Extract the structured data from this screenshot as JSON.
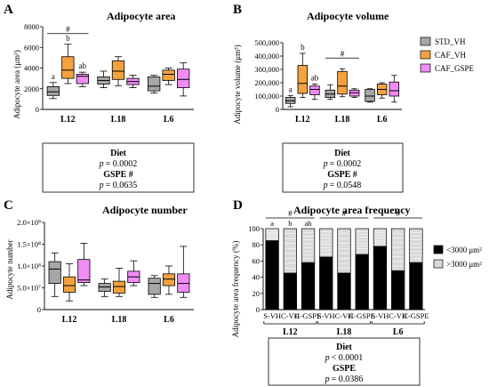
{
  "colors": {
    "STD_VH": "#a6a6a6",
    "CAF_VH": "#f4a23f",
    "CAF_GSPE": "#f08cf4",
    "bar_below": "#000000",
    "bar_above": "#d9d9d9"
  },
  "legend": [
    "STD_VH",
    "CAF_VH",
    "CAF_GSPE"
  ],
  "chart_data": [
    {
      "type": "boxplot",
      "panel": "A",
      "title": "Adipocyte area",
      "ylabel": "Adipocyte area (μm²)",
      "ylim": [
        0,
        8000
      ],
      "yticks": [
        "0",
        "2000",
        "4000",
        "6000",
        "8000"
      ],
      "categories": [
        "L12",
        "L18",
        "L6"
      ],
      "series": [
        {
          "name": "STD_VH",
          "boxes": [
            [
              1050,
              1350,
              1700,
              2200,
              2600
            ],
            [
              2100,
              2450,
              2800,
              3150,
              3700
            ],
            [
              1600,
              1800,
              2250,
              3150,
              3300
            ]
          ]
        },
        {
          "name": "CAF_VH",
          "boxes": [
            [
              2500,
              3000,
              3800,
              5100,
              6300
            ],
            [
              2300,
              2900,
              3700,
              4700,
              5100
            ],
            [
              2400,
              2800,
              3400,
              3800,
              4000
            ]
          ]
        },
        {
          "name": "CAF_GSPE",
          "boxes": [
            [
              2200,
              2500,
              3200,
              3400,
              3600
            ],
            [
              2100,
              2400,
              2700,
              3000,
              3300
            ],
            [
              1300,
              2100,
              2900,
              3900,
              4500
            ]
          ]
        }
      ],
      "annotations": [
        {
          "text": "#",
          "group": "L12"
        },
        {
          "text": "a",
          "group": "L12",
          "series": "STD_VH"
        },
        {
          "text": "b",
          "group": "L12",
          "series": "CAF_VH"
        },
        {
          "text": "ab",
          "group": "L12",
          "series": "CAF_GSPE"
        }
      ],
      "stats": {
        "heading": "Diet",
        "p1": "= 0.0002",
        "sub": "GSPE #",
        "p2": "= 0.0635"
      }
    },
    {
      "type": "boxplot",
      "panel": "B",
      "title": "Adipocyte volume",
      "ylabel": "Adipocyte volume (μm³)",
      "ylim": [
        0,
        500000
      ],
      "yticks": [
        "0",
        "100,000",
        "200,000",
        "300,000",
        "400,000",
        "500,000"
      ],
      "categories": [
        "L12",
        "L18",
        "L6"
      ],
      "series": [
        {
          "name": "STD_VH",
          "boxes": [
            [
              20000,
              45000,
              65000,
              90000,
              105000
            ],
            [
              75000,
              90000,
              115000,
              145000,
              185000
            ],
            [
              55000,
              60000,
              100000,
              150000,
              155000
            ]
          ]
        },
        {
          "name": "CAF_VH",
          "boxes": [
            [
              90000,
              120000,
              195000,
              330000,
              420000
            ],
            [
              95000,
              115000,
              175000,
              285000,
              305000
            ],
            [
              85000,
              110000,
              150000,
              190000,
              200000
            ]
          ]
        },
        {
          "name": "CAF_GSPE",
          "boxes": [
            [
              75000,
              110000,
              150000,
              175000,
              190000
            ],
            [
              90000,
              100000,
              125000,
              145000,
              155000
            ],
            [
              55000,
              100000,
              140000,
              205000,
              255000
            ]
          ]
        }
      ],
      "annotations": [
        {
          "text": "#",
          "group": "L18"
        },
        {
          "text": "a",
          "group": "L12",
          "series": "STD_VH"
        },
        {
          "text": "b",
          "group": "L12",
          "series": "CAF_VH"
        },
        {
          "text": "ab",
          "group": "L12",
          "series": "CAF_GSPE"
        }
      ],
      "stats": {
        "heading": "Diet",
        "p1": "= 0.0002",
        "sub": "GSPE #",
        "p2": "= 0.0548"
      }
    },
    {
      "type": "boxplot",
      "panel": "C",
      "title": "Adipocyte number",
      "ylabel": "Adipocyte number",
      "ylim": [
        0,
        200000000
      ],
      "yticks": [
        "0",
        "5.0×10⁷",
        "1.0×10⁸",
        "1.5×10⁸",
        "2.0×10⁸"
      ],
      "categories": [
        "L12",
        "L18",
        "L6"
      ],
      "series": [
        {
          "name": "STD_VH",
          "boxes": [
            [
              30000000,
              60000000,
              93000000,
              110000000,
              130000000
            ],
            [
              30000000,
              42000000,
              52000000,
              60000000,
              70000000
            ],
            [
              28000000,
              35000000,
              60000000,
              72000000,
              78000000
            ]
          ]
        },
        {
          "name": "CAF_VH",
          "boxes": [
            [
              20000000,
              40000000,
              55000000,
              75000000,
              105000000
            ],
            [
              30000000,
              38000000,
              53000000,
              65000000,
              95000000
            ],
            [
              35000000,
              55000000,
              70000000,
              82000000,
              100000000
            ]
          ]
        },
        {
          "name": "CAF_GSPE",
          "boxes": [
            [
              55000000,
              62000000,
              68000000,
              115000000,
              152000000
            ],
            [
              55000000,
              62000000,
              75000000,
              88000000,
              112000000
            ],
            [
              28000000,
              40000000,
              60000000,
              82000000,
              145000000
            ]
          ]
        }
      ]
    },
    {
      "type": "stacked_bar",
      "panel": "D",
      "title": "Adipocyte area frequency",
      "ylabel": "Adipocyte area frequency (%)",
      "ylim": [
        0,
        100
      ],
      "yticks": [
        "0",
        "20",
        "40",
        "60",
        "80",
        "100"
      ],
      "legend": [
        "<3000 μm²",
        ">3000 μm²"
      ],
      "groups": [
        "L12",
        "L18",
        "L6"
      ],
      "bar_labels": [
        "S-VH",
        "C-VH",
        "C-GSPE",
        "S-VH",
        "C-VH",
        "C-GSPE",
        "S-VH",
        "C-VH",
        "C-GSPE"
      ],
      "below_3000": [
        85,
        45,
        58,
        65,
        45,
        68,
        78,
        48,
        58
      ],
      "annotations": [
        {
          "text": "#",
          "group": "L12"
        },
        {
          "text": "#",
          "group": "L18"
        },
        {
          "text": "#",
          "group": "L6"
        },
        {
          "text": "a",
          "bar": 0
        },
        {
          "text": "b",
          "bar": 1
        },
        {
          "text": "ab",
          "bar": 2
        }
      ],
      "stats": {
        "heading": "Diet",
        "p1": "< 0.0001",
        "sub": "GSPE",
        "p2": "= 0.0386"
      }
    }
  ]
}
